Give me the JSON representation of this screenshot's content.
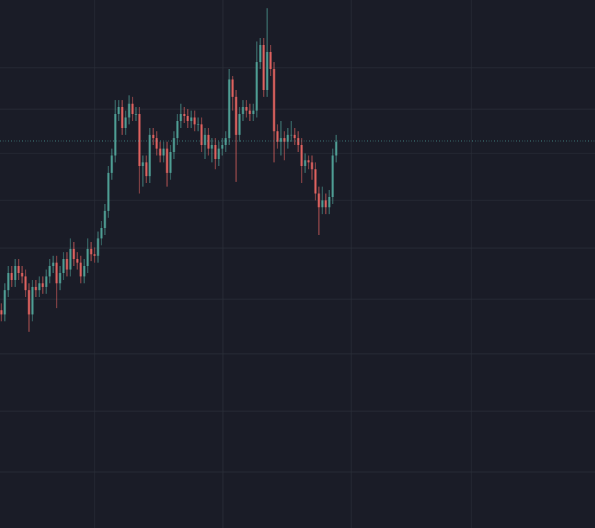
{
  "chart_data": {
    "type": "candlestick",
    "x": [
      0,
      1,
      2,
      3,
      4,
      5,
      6,
      7,
      8,
      9,
      10,
      11,
      12,
      13,
      14,
      15,
      16,
      17,
      18,
      19,
      20,
      21,
      22,
      23,
      24,
      25,
      26,
      27,
      28,
      29,
      30,
      31,
      32,
      33,
      34,
      35,
      36,
      37,
      38,
      39,
      40,
      41,
      42,
      43,
      44,
      45,
      46,
      47,
      48,
      49,
      50,
      51,
      52,
      53,
      54,
      55,
      56,
      57,
      58,
      59,
      60,
      61,
      62,
      63,
      64,
      65,
      66,
      67,
      68,
      69,
      70,
      71,
      72,
      73,
      74,
      75,
      76,
      77,
      78,
      79,
      80,
      81,
      82,
      83,
      84,
      85,
      86,
      87,
      88,
      89,
      90,
      91,
      92,
      93,
      94,
      95,
      96,
      97
    ],
    "open": [
      315,
      309,
      344,
      369,
      359,
      379,
      369,
      364,
      344,
      309,
      349,
      344,
      354,
      349,
      364,
      379,
      384,
      354,
      369,
      389,
      374,
      404,
      389,
      384,
      364,
      379,
      404,
      396,
      394,
      419,
      434,
      459,
      514,
      539,
      599,
      609,
      579,
      594,
      614,
      599,
      599,
      524,
      529,
      509,
      569,
      564,
      549,
      539,
      549,
      514,
      544,
      564,
      589,
      599,
      596,
      589,
      594,
      584,
      584,
      554,
      569,
      549,
      554,
      534,
      549,
      554,
      564,
      649,
      624,
      569,
      599,
      609,
      604,
      599,
      604,
      674,
      699,
      634,
      689,
      664,
      574,
      559,
      564,
      559,
      569,
      569,
      564,
      554,
      524,
      532,
      529,
      519,
      484,
      464,
      474,
      464,
      479,
      539
    ],
    "high": [
      325,
      354,
      379,
      379,
      389,
      389,
      379,
      374,
      354,
      359,
      359,
      364,
      364,
      374,
      389,
      394,
      394,
      379,
      399,
      399,
      419,
      414,
      399,
      394,
      389,
      419,
      414,
      406,
      429,
      444,
      469,
      524,
      549,
      619,
      619,
      619,
      604,
      626,
      624,
      609,
      609,
      539,
      539,
      579,
      579,
      574,
      559,
      559,
      559,
      554,
      574,
      599,
      614,
      609,
      606,
      604,
      604,
      594,
      594,
      579,
      579,
      564,
      564,
      559,
      564,
      574,
      664,
      654,
      634,
      609,
      619,
      619,
      614,
      614,
      704,
      709,
      709,
      752,
      699,
      674,
      584,
      589,
      574,
      579,
      589,
      579,
      574,
      564,
      542,
      539,
      539,
      529,
      494,
      494,
      484,
      489,
      549,
      569
    ],
    "low": [
      299,
      299,
      334,
      349,
      349,
      359,
      354,
      334,
      284,
      299,
      334,
      334,
      339,
      339,
      354,
      369,
      318,
      344,
      359,
      364,
      364,
      379,
      374,
      354,
      354,
      369,
      386,
      384,
      384,
      409,
      424,
      449,
      504,
      529,
      589,
      569,
      569,
      584,
      589,
      589,
      484,
      494,
      499,
      499,
      554,
      539,
      529,
      529,
      494,
      504,
      534,
      554,
      579,
      586,
      579,
      579,
      574,
      574,
      544,
      534,
      539,
      529,
      519,
      524,
      539,
      544,
      554,
      604,
      501,
      559,
      589,
      594,
      589,
      589,
      594,
      664,
      624,
      624,
      654,
      529,
      549,
      539,
      532,
      549,
      559,
      554,
      544,
      499,
      514,
      519,
      504,
      474,
      424,
      454,
      454,
      454,
      469,
      529
    ],
    "close": [
      309,
      344,
      369,
      359,
      379,
      369,
      364,
      344,
      309,
      349,
      344,
      354,
      349,
      364,
      379,
      384,
      354,
      369,
      389,
      374,
      404,
      389,
      384,
      364,
      379,
      404,
      396,
      394,
      419,
      434,
      459,
      514,
      539,
      599,
      609,
      579,
      594,
      614,
      599,
      599,
      524,
      529,
      509,
      569,
      564,
      549,
      539,
      549,
      514,
      544,
      564,
      589,
      599,
      596,
      589,
      594,
      584,
      584,
      554,
      569,
      549,
      554,
      534,
      549,
      554,
      564,
      649,
      624,
      569,
      599,
      609,
      604,
      599,
      604,
      674,
      699,
      634,
      689,
      664,
      574,
      559,
      564,
      559,
      569,
      569,
      564,
      554,
      524,
      532,
      529,
      519,
      484,
      464,
      474,
      464,
      479,
      539,
      559
    ],
    "up_color": "#4f9e94",
    "down_color": "#e0625f",
    "xlim": [
      -0.4,
      172
    ],
    "ylim": [
      0,
      764
    ],
    "xticks": [
      27,
      64.2,
      101.4,
      136.2
    ],
    "yticks": [
      666,
      606,
      542,
      474,
      405,
      331,
      252,
      169,
      81
    ],
    "grid": true,
    "grid_color": "#2a2e39",
    "background": "#1a1c27",
    "price_line": 560,
    "price_line_color": "#4da6a0"
  }
}
